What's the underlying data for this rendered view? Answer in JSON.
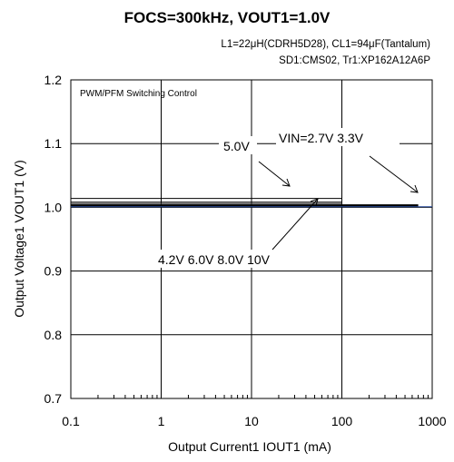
{
  "chart_data": {
    "type": "line",
    "title": "FOCS=300kHz, VOUT1=1.0V",
    "subtitle_lines": [
      "L1=22μH(CDRH5D28), CL1=94μF(Tantalum)",
      "SD1:CMS02, Tr1:XP162A12A6P"
    ],
    "box_note": "PWM/PFM Switching Control",
    "xlabel": "Output Current1  IOUT1 (mA)",
    "ylabel": "Output Voltage1  VOUT1 (V)",
    "x_scale": "log",
    "xlim": [
      0.1,
      1000
    ],
    "ylim": [
      0.7,
      1.2
    ],
    "x_ticks": [
      {
        "value": 0.1,
        "label": "0.1"
      },
      {
        "value": 1,
        "label": "1"
      },
      {
        "value": 10,
        "label": "10"
      },
      {
        "value": 100,
        "label": "100"
      },
      {
        "value": 1000,
        "label": "1000"
      }
    ],
    "y_ticks": [
      {
        "value": 0.7,
        "label": "0.7"
      },
      {
        "value": 0.8,
        "label": "0.8"
      },
      {
        "value": 0.9,
        "label": "0.9"
      },
      {
        "value": 1.0,
        "label": "1.0"
      },
      {
        "value": 1.1,
        "label": "1.1"
      },
      {
        "value": 1.2,
        "label": "1.2"
      }
    ],
    "grid": true,
    "series": [
      {
        "name": "VIN=2.7V",
        "color": "#000000",
        "x": [
          0.1,
          700
        ],
        "y": [
          1.002,
          1.002
        ]
      },
      {
        "name": "3.3V",
        "color": "#000000",
        "x": [
          0.1,
          700
        ],
        "y": [
          1.003,
          1.003
        ]
      },
      {
        "name": "4.2V",
        "color": "#000000",
        "x": [
          0.1,
          700
        ],
        "y": [
          1.004,
          1.004
        ]
      },
      {
        "name": "5.0V",
        "color": "#000000",
        "x": [
          0.1,
          100
        ],
        "y": [
          1.014,
          1.014
        ]
      },
      {
        "name": "6.0V",
        "color": "#000000",
        "x": [
          0.1,
          100
        ],
        "y": [
          1.008,
          1.008
        ]
      },
      {
        "name": "8.0V",
        "color": "#333333",
        "x": [
          0.1,
          100
        ],
        "y": [
          1.006,
          1.006
        ]
      },
      {
        "name": "10V",
        "color": "#2a4fa0",
        "x": [
          0.1,
          1000
        ],
        "y": [
          1.001,
          1.001
        ]
      }
    ],
    "annotations": {
      "top_left": "5.0V",
      "top_right": "VIN=2.7V  3.3V",
      "bottom": "4.2V  6.0V  8.0V  10V"
    }
  }
}
